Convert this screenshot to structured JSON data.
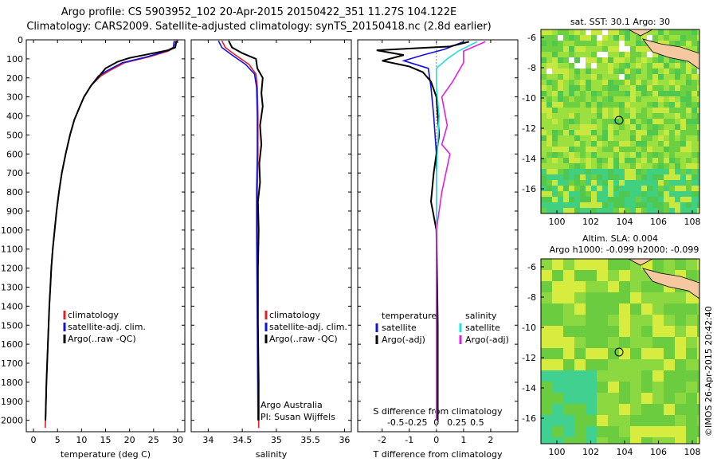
{
  "title_line1": "Argo profile: CS 5903952_102 20-Apr-2015 20150422_351 11.27S 104.122E",
  "title_line2": "Climatology: CARS2009. Satellite-adjusted climatology: synTS_20150418.nc (2.8d earlier)",
  "colors": {
    "climatology": "#e02020",
    "satellite": "#1010e0",
    "argo": "#000000",
    "sat_salinity": "#20e0e0",
    "argo_adj_salinity": "#e020e0",
    "land": "#f5c8a0"
  },
  "chart_data": [
    {
      "type": "line",
      "name": "temperature",
      "xlabel": "temperature (deg C)",
      "ylim": [
        2060,
        0
      ],
      "xlim": [
        -1.5,
        31.5
      ],
      "xticks": [
        0,
        5,
        10,
        15,
        20,
        25,
        30
      ],
      "yticks": [
        0,
        100,
        200,
        300,
        400,
        500,
        600,
        700,
        800,
        900,
        1000,
        1100,
        1200,
        1300,
        1400,
        1500,
        1600,
        1700,
        1800,
        1900,
        2000
      ],
      "legend": [
        "climatology",
        "satellite-adj. clim.",
        "Argo(..raw -QC)"
      ],
      "series": [
        {
          "name": "climatology",
          "color": "#e02020",
          "points": [
            [
              29.6,
              5
            ],
            [
              29.4,
              40
            ],
            [
              28,
              60
            ],
            [
              24,
              90
            ],
            [
              19,
              120
            ],
            [
              16,
              160
            ],
            [
              14,
              190
            ],
            [
              12,
              240
            ],
            [
              10.5,
              300
            ],
            [
              9.5,
              360
            ],
            [
              8.5,
              420
            ],
            [
              7.6,
              500
            ],
            [
              6.7,
              600
            ],
            [
              5.9,
              700
            ],
            [
              5.3,
              800
            ],
            [
              4.8,
              900
            ],
            [
              4.4,
              1000
            ],
            [
              4.0,
              1100
            ],
            [
              3.7,
              1200
            ],
            [
              3.5,
              1300
            ],
            [
              3.3,
              1400
            ],
            [
              3.15,
              1500
            ],
            [
              3.0,
              1600
            ],
            [
              2.85,
              1700
            ],
            [
              2.7,
              1800
            ],
            [
              2.6,
              1900
            ],
            [
              2.5,
              2000
            ],
            [
              2.45,
              2040
            ]
          ]
        },
        {
          "name": "satellite-adj. clim.",
          "color": "#1010e0",
          "points": [
            [
              29.3,
              5
            ],
            [
              29.1,
              40
            ],
            [
              27.5,
              60
            ],
            [
              23.5,
              90
            ],
            [
              18.5,
              120
            ],
            [
              15.5,
              160
            ],
            [
              13.5,
              190
            ],
            [
              12,
              240
            ],
            [
              10.5,
              300
            ],
            [
              9.5,
              360
            ],
            [
              8.5,
              420
            ],
            [
              7.6,
              500
            ],
            [
              6.7,
              600
            ],
            [
              5.9,
              700
            ],
            [
              5.3,
              800
            ],
            [
              4.8,
              900
            ],
            [
              4.4,
              1000
            ],
            [
              4.0,
              1100
            ],
            [
              3.7,
              1200
            ],
            [
              3.5,
              1300
            ],
            [
              3.3,
              1400
            ],
            [
              3.15,
              1500
            ],
            [
              3.0,
              1600
            ],
            [
              2.85,
              1700
            ],
            [
              2.7,
              1800
            ],
            [
              2.6,
              1900
            ],
            [
              2.5,
              2000
            ]
          ]
        },
        {
          "name": "Argo(..raw -QC)",
          "color": "#000000",
          "points": [
            [
              29.8,
              5
            ],
            [
              29.5,
              40
            ],
            [
              28,
              55
            ],
            [
              25,
              70
            ],
            [
              22,
              85
            ],
            [
              20,
              95
            ],
            [
              17.5,
              115
            ],
            [
              15,
              150
            ],
            [
              14,
              180
            ],
            [
              12,
              240
            ],
            [
              10.5,
              300
            ],
            [
              9.5,
              360
            ],
            [
              8.5,
              420
            ],
            [
              7.6,
              500
            ],
            [
              6.7,
              600
            ],
            [
              5.9,
              700
            ],
            [
              5.3,
              800
            ],
            [
              4.8,
              900
            ],
            [
              4.4,
              1000
            ],
            [
              4.0,
              1100
            ],
            [
              3.7,
              1200
            ],
            [
              3.5,
              1300
            ],
            [
              3.3,
              1400
            ],
            [
              3.15,
              1500
            ],
            [
              3.0,
              1600
            ],
            [
              2.85,
              1700
            ],
            [
              2.7,
              1800
            ],
            [
              2.6,
              1900
            ],
            [
              2.5,
              2000
            ]
          ]
        }
      ]
    },
    {
      "type": "line",
      "name": "salinity",
      "xlabel": "salinity",
      "ylim": [
        2060,
        0
      ],
      "xlim": [
        33.75,
        36.1
      ],
      "xticks": [
        34,
        34.5,
        35,
        35.5,
        36
      ],
      "legend": [
        "climatology",
        "satellite-adj. clim.",
        "Argo(..raw -QC)"
      ],
      "annotation": [
        "Argo Australia",
        "PI: Susan Wijffels"
      ],
      "series": [
        {
          "name": "climatology",
          "color": "#e02020",
          "points": [
            [
              34.2,
              5
            ],
            [
              34.25,
              40
            ],
            [
              34.4,
              80
            ],
            [
              34.6,
              130
            ],
            [
              34.7,
              180
            ],
            [
              34.72,
              250
            ],
            [
              34.73,
              400
            ],
            [
              34.73,
              600
            ],
            [
              34.72,
              800
            ],
            [
              34.72,
              1000
            ],
            [
              34.73,
              1500
            ],
            [
              34.74,
              2000
            ],
            [
              34.74,
              2040
            ]
          ]
        },
        {
          "name": "satellite-adj. clim.",
          "color": "#1010e0",
          "points": [
            [
              34.15,
              5
            ],
            [
              34.2,
              40
            ],
            [
              34.35,
              80
            ],
            [
              34.55,
              130
            ],
            [
              34.68,
              180
            ],
            [
              34.71,
              250
            ],
            [
              34.72,
              400
            ],
            [
              34.72,
              600
            ],
            [
              34.71,
              800
            ],
            [
              34.71,
              1000
            ],
            [
              34.72,
              1500
            ],
            [
              34.73,
              2000
            ]
          ]
        },
        {
          "name": "Argo(..raw -QC)",
          "color": "#000000",
          "points": [
            [
              34.3,
              5
            ],
            [
              34.35,
              40
            ],
            [
              34.5,
              70
            ],
            [
              34.7,
              100
            ],
            [
              34.72,
              150
            ],
            [
              34.8,
              200
            ],
            [
              34.78,
              280
            ],
            [
              34.8,
              350
            ],
            [
              34.76,
              450
            ],
            [
              34.78,
              550
            ],
            [
              34.75,
              650
            ],
            [
              34.76,
              750
            ],
            [
              34.73,
              850
            ],
            [
              34.74,
              1000
            ],
            [
              34.73,
              1200
            ],
            [
              34.73,
              1500
            ],
            [
              34.74,
              1800
            ],
            [
              34.74,
              2000
            ]
          ]
        }
      ]
    },
    {
      "type": "line",
      "name": "differences",
      "xlabel": "T difference from climatology",
      "xlabel2": "S difference from climatology",
      "ylim": [
        2060,
        0
      ],
      "xlim": [
        -2.9,
        3.0
      ],
      "xticks": [
        -2,
        -1,
        0,
        1,
        2
      ],
      "xticklabels_S": [
        "-0.5",
        "-0.25",
        "0",
        "0.25",
        "0.5"
      ],
      "legend_t_header": "temperature",
      "legend_s_header": "salinity",
      "legend_t": [
        "satellite",
        "Argo(-adj)"
      ],
      "legend_s": [
        "satellite",
        "Argo(-adj)"
      ],
      "series": [
        {
          "name": "T satellite",
          "color": "#1010e0",
          "points": [
            [
              1.0,
              10
            ],
            [
              0.3,
              50
            ],
            [
              -0.5,
              80
            ],
            [
              -1.2,
              110
            ],
            [
              -0.3,
              150
            ],
            [
              -0.2,
              250
            ],
            [
              -0.1,
              400
            ],
            [
              0,
              600
            ],
            [
              0,
              1000
            ],
            [
              0,
              1500
            ],
            [
              0,
              2000
            ]
          ]
        },
        {
          "name": "T Argo(-adj)",
          "color": "#000000",
          "points": [
            [
              1.2,
              10
            ],
            [
              0.5,
              35
            ],
            [
              -2.2,
              55
            ],
            [
              -1.2,
              80
            ],
            [
              -2.0,
              110
            ],
            [
              -1.0,
              140
            ],
            [
              -0.5,
              170
            ],
            [
              -0.2,
              220
            ],
            [
              0,
              300
            ],
            [
              0.1,
              500
            ],
            [
              -0.1,
              700
            ],
            [
              -0.2,
              850
            ],
            [
              0,
              1000
            ],
            [
              0.05,
              1500
            ],
            [
              0.05,
              2000
            ]
          ]
        },
        {
          "name": "S satellite",
          "color": "#20e0e0",
          "points": [
            [
              1.5,
              10
            ],
            [
              0.8,
              60
            ],
            [
              0.4,
              100
            ],
            [
              0,
              150
            ],
            [
              0,
              250
            ],
            [
              0.1,
              400
            ],
            [
              0,
              700
            ],
            [
              0,
              1000
            ],
            [
              0,
              1500
            ],
            [
              0,
              2000
            ]
          ]
        },
        {
          "name": "S Argo(-adj)",
          "color": "#e020e0",
          "points": [
            [
              1.8,
              10
            ],
            [
              1.0,
              60
            ],
            [
              1.0,
              120
            ],
            [
              0.6,
              220
            ],
            [
              0.2,
              300
            ],
            [
              0.4,
              450
            ],
            [
              0.2,
              550
            ],
            [
              0.5,
              600
            ],
            [
              0.2,
              800
            ],
            [
              0,
              1000
            ],
            [
              0,
              1500
            ],
            [
              0,
              2000
            ]
          ]
        }
      ]
    }
  ],
  "maps": [
    {
      "name": "sst",
      "title": "sat. SST: 30.1  Argo: 30",
      "yticks": [
        "-6",
        "-8",
        "-10",
        "-12",
        "-14",
        "-16"
      ],
      "xticks": [
        "100",
        "102",
        "104",
        "106",
        "108"
      ]
    },
    {
      "name": "sla",
      "title": "Altim. SLA: 0.004",
      "subtitle": "Argo h1000: -0.099 h2000: -0.099",
      "yticks": [
        "-6",
        "-8",
        "-10",
        "-12",
        "-14",
        "-16"
      ],
      "xticks": [
        "100",
        "102",
        "104",
        "106",
        "108"
      ]
    }
  ],
  "watermark": "©IMOS 26-Apr-2015 20:42:40"
}
